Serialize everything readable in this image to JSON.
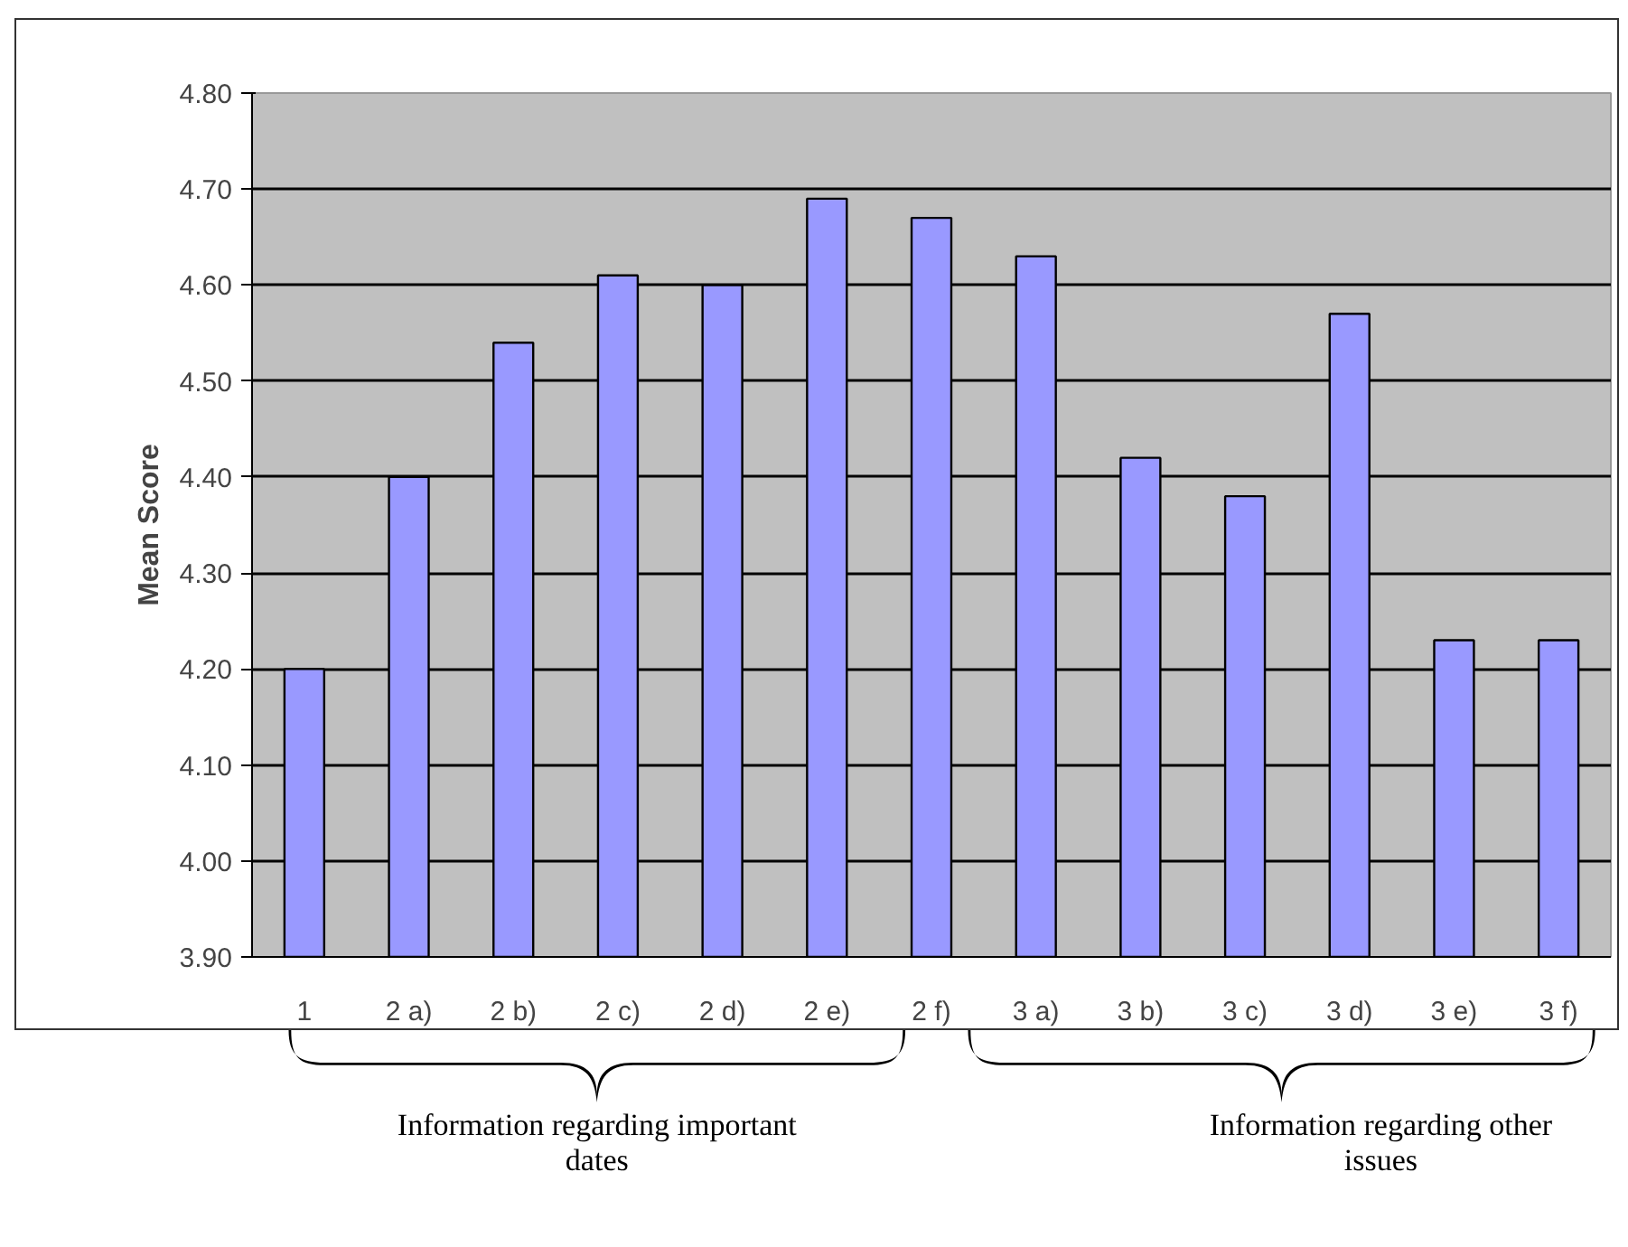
{
  "chart_data": {
    "type": "bar",
    "ylabel": "Mean Score",
    "categories": [
      "1",
      "2 a)",
      "2 b)",
      "2 c)",
      "2 d)",
      "2 e)",
      "2 f)",
      "3 a)",
      "3 b)",
      "3 c)",
      "3 d)",
      "3 e)",
      "3 f)"
    ],
    "values": [
      4.2,
      4.4,
      4.54,
      4.61,
      4.6,
      4.69,
      4.67,
      4.63,
      4.42,
      4.38,
      4.57,
      4.23,
      4.23
    ],
    "color": "#9999ff",
    "ylim": [
      3.9,
      4.8
    ],
    "yticks": [
      {
        "value": 3.9,
        "label": "3.90"
      },
      {
        "value": 4.0,
        "label": "4.00"
      },
      {
        "value": 4.1,
        "label": "4.10"
      },
      {
        "value": 4.2,
        "label": "4.20"
      },
      {
        "value": 4.3,
        "label": "4.30"
      },
      {
        "value": 4.4,
        "label": "4.40"
      },
      {
        "value": 4.5,
        "label": "4.50"
      },
      {
        "value": 4.6,
        "label": "4.60"
      },
      {
        "value": 4.7,
        "label": "4.70"
      },
      {
        "value": 4.8,
        "label": "4.80"
      }
    ],
    "grid": "y",
    "annotations": [
      "Information regarding important dates",
      "Information regarding other issues"
    ]
  }
}
